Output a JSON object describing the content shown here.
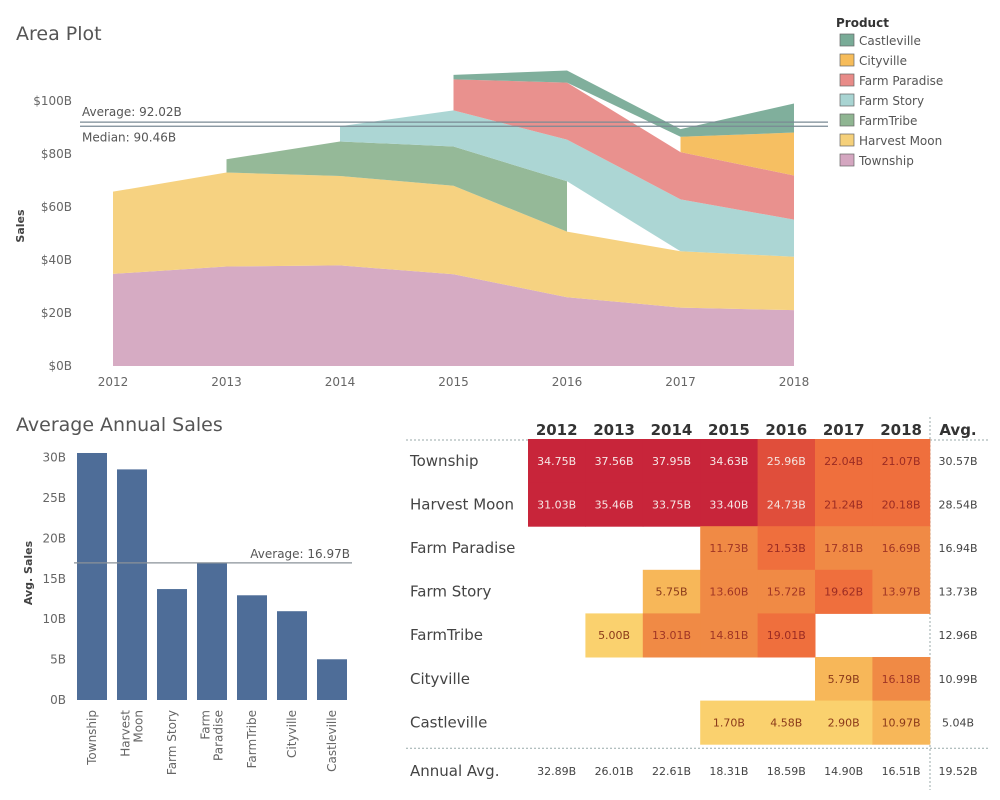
{
  "area_plot": {
    "title": "Area Plot",
    "legend_title": "Product",
    "ylabel": "Sales",
    "avg_label": "Average: 92.02B",
    "median_label": "Median: 90.46B",
    "avg_value": 92.02,
    "median_value": 90.46
  },
  "bar_plot": {
    "title": "Average Annual Sales",
    "ylabel": "Avg. Sales",
    "avg_label": "Average: 16.97B",
    "avg_value": 16.97
  },
  "heatmap": {
    "avg_header": "Avg.",
    "annual_avg_label": "Annual Avg."
  },
  "chart_data": [
    {
      "type": "area",
      "title": "Area Plot",
      "ylabel": "Sales",
      "x": [
        2012,
        2013,
        2014,
        2015,
        2016,
        2017,
        2018
      ],
      "ylim": [
        0,
        100
      ],
      "yticks": [
        "$0B",
        "$20B",
        "$40B",
        "$60B",
        "$80B",
        "$100B"
      ],
      "ytick_values": [
        0,
        20,
        40,
        60,
        80,
        100
      ],
      "legend_position": "right",
      "series": [
        {
          "name": "Township",
          "color": "#d4a6c0",
          "values": [
            34.75,
            37.56,
            37.95,
            34.63,
            25.96,
            22.04,
            21.07
          ]
        },
        {
          "name": "Harvest Moon",
          "color": "#f5d07a",
          "values": [
            31.03,
            35.46,
            33.75,
            33.4,
            24.73,
            21.24,
            20.18
          ]
        },
        {
          "name": "FarmTribe",
          "color": "#8fb592",
          "values": [
            null,
            5.0,
            13.01,
            14.81,
            19.01,
            null,
            null
          ]
        },
        {
          "name": "Farm Story",
          "color": "#a8d4d2",
          "values": [
            null,
            null,
            5.75,
            13.6,
            15.72,
            19.62,
            13.97
          ]
        },
        {
          "name": "Farm Paradise",
          "color": "#e88b88",
          "values": [
            null,
            null,
            null,
            11.73,
            21.53,
            17.81,
            16.69
          ]
        },
        {
          "name": "Cityville",
          "color": "#f6bc5a",
          "values": [
            null,
            null,
            null,
            null,
            null,
            5.79,
            16.18
          ]
        },
        {
          "name": "Castleville",
          "color": "#79ab97",
          "values": [
            null,
            null,
            null,
            1.7,
            4.58,
            2.9,
            10.97
          ]
        }
      ]
    },
    {
      "type": "bar",
      "title": "Average Annual Sales",
      "ylabel": "Avg. Sales",
      "categories": [
        "Township",
        "Harvest Moon",
        "Farm Story",
        "Farm Paradise",
        "FarmTribe",
        "Cityville",
        "Castleville"
      ],
      "category_lines": [
        [
          "Township"
        ],
        [
          "Harvest",
          "Moon"
        ],
        [
          "Farm Story"
        ],
        [
          "Farm",
          "Paradise"
        ],
        [
          "FarmTribe"
        ],
        [
          "Cityville"
        ],
        [
          "Castleville"
        ]
      ],
      "values": [
        30.57,
        28.54,
        13.73,
        16.94,
        12.96,
        10.99,
        5.04
      ],
      "ylim": [
        0,
        32
      ],
      "yticks": [
        "0B",
        "5B",
        "10B",
        "15B",
        "20B",
        "25B",
        "30B"
      ],
      "ytick_values": [
        0,
        5,
        10,
        15,
        20,
        25,
        30
      ],
      "color": "#4e6d98"
    },
    {
      "type": "heatmap",
      "columns": [
        "2012",
        "2013",
        "2014",
        "2015",
        "2016",
        "2017",
        "2018"
      ],
      "rows": [
        {
          "name": "Township",
          "values": [
            "34.75B",
            "37.56B",
            "37.95B",
            "34.63B",
            "25.96B",
            "22.04B",
            "21.07B"
          ],
          "avg": "30.57B"
        },
        {
          "name": "Harvest Moon",
          "values": [
            "31.03B",
            "35.46B",
            "33.75B",
            "33.40B",
            "24.73B",
            "21.24B",
            "20.18B"
          ],
          "avg": "28.54B"
        },
        {
          "name": "Farm Paradise",
          "values": [
            "",
            "",
            "",
            "11.73B",
            "21.53B",
            "17.81B",
            "16.69B"
          ],
          "avg": "16.94B"
        },
        {
          "name": "Farm Story",
          "values": [
            "",
            "",
            "5.75B",
            "13.60B",
            "15.72B",
            "19.62B",
            "13.97B"
          ],
          "avg": "13.73B"
        },
        {
          "name": "FarmTribe",
          "values": [
            "",
            "5.00B",
            "13.01B",
            "14.81B",
            "19.01B",
            "",
            ""
          ],
          "avg": "12.96B"
        },
        {
          "name": "Cityville",
          "values": [
            "",
            "",
            "",
            "",
            "",
            "5.79B",
            "16.18B"
          ],
          "avg": "10.99B"
        },
        {
          "name": "Castleville",
          "values": [
            "",
            "",
            "",
            "1.70B",
            "4.58B",
            "2.90B",
            "10.97B"
          ],
          "avg": "5.04B"
        }
      ],
      "annual_avg": [
        "32.89B",
        "26.01B",
        "22.61B",
        "18.31B",
        "18.59B",
        "14.90B",
        "16.51B"
      ],
      "overall_avg": "19.52B"
    }
  ]
}
